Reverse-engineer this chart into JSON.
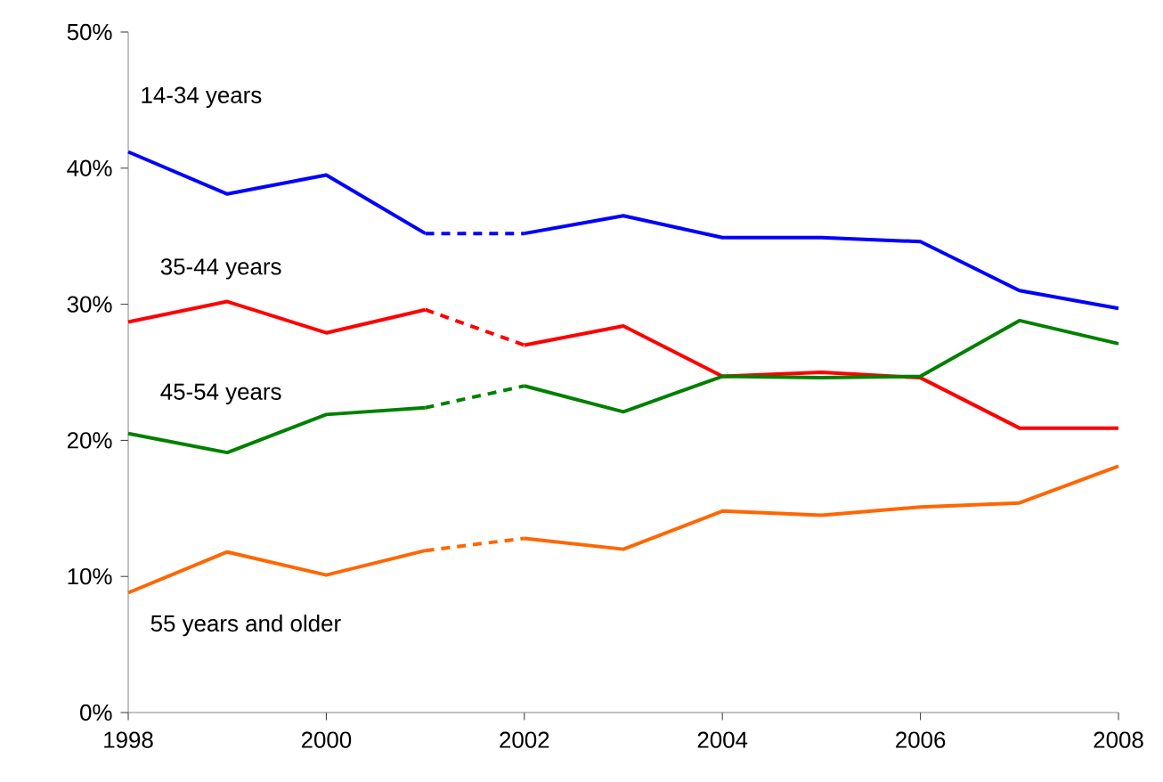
{
  "chart_data": {
    "type": "line",
    "xlim": [
      1998,
      2008
    ],
    "xticks": [
      1998,
      2000,
      2002,
      2004,
      2006,
      2008
    ],
    "ylim": [
      0,
      50
    ],
    "yticks": [
      {
        "value": 0,
        "label": "0%"
      },
      {
        "value": 10,
        "label": "10%"
      },
      {
        "value": 20,
        "label": "20%"
      },
      {
        "value": 30,
        "label": "30%"
      },
      {
        "value": 40,
        "label": "40%"
      },
      {
        "value": 50,
        "label": "50%"
      }
    ],
    "marker": "none",
    "series": [
      {
        "name": "14-34 years",
        "color": "#0000ff",
        "line_style": "solid",
        "x": [
          1998,
          1999,
          2000,
          2001
        ],
        "values": [
          41.2,
          38.1,
          39.5,
          35.2
        ]
      },
      {
        "color": "#0000ff",
        "line_style": "dashed",
        "x": [
          2001,
          2002
        ],
        "values": [
          35.2,
          35.2
        ]
      },
      {
        "color": "#0000ff",
        "line_style": "solid",
        "x": [
          2002,
          2003,
          2004,
          2005,
          2006,
          2007,
          2008
        ],
        "values": [
          35.2,
          36.5,
          34.9,
          34.9,
          34.6,
          31.0,
          29.7
        ]
      },
      {
        "name": "35-44 years",
        "color": "#ff0000",
        "line_style": "solid",
        "x": [
          1998,
          1999,
          2000,
          2001
        ],
        "values": [
          28.7,
          30.2,
          27.9,
          29.6
        ]
      },
      {
        "color": "#ff0000",
        "line_style": "dashed",
        "x": [
          2001,
          2002
        ],
        "values": [
          29.6,
          27.0
        ]
      },
      {
        "color": "#ff0000",
        "line_style": "solid",
        "x": [
          2002,
          2003,
          2004,
          2005,
          2006,
          2007,
          2008
        ],
        "values": [
          27.0,
          28.4,
          24.7,
          25.0,
          24.6,
          20.9,
          20.9
        ]
      },
      {
        "name": "45-54 years",
        "color": "#008000",
        "line_style": "solid",
        "x": [
          1998,
          1999,
          2000,
          2001
        ],
        "values": [
          20.5,
          19.1,
          21.9,
          22.4
        ]
      },
      {
        "color": "#008000",
        "line_style": "dashed",
        "x": [
          2001,
          2002
        ],
        "values": [
          22.4,
          24.0
        ]
      },
      {
        "color": "#008000",
        "line_style": "solid",
        "x": [
          2002,
          2003,
          2004,
          2005,
          2006,
          2007,
          2008
        ],
        "values": [
          24.0,
          22.1,
          24.7,
          24.6,
          24.7,
          28.8,
          27.1
        ]
      },
      {
        "name": "55 years and older",
        "color": "#ff6600",
        "line_style": "solid",
        "x": [
          1998,
          1999,
          2000,
          2001
        ],
        "values": [
          8.8,
          11.8,
          10.1,
          11.9
        ]
      },
      {
        "color": "#ff6600",
        "line_style": "dashed",
        "x": [
          2001,
          2002
        ],
        "values": [
          11.9,
          12.8
        ]
      },
      {
        "color": "#ff6600",
        "line_style": "solid",
        "x": [
          2002,
          2003,
          2004,
          2005,
          2006,
          2007,
          2008
        ],
        "values": [
          12.8,
          12.0,
          14.8,
          14.5,
          15.1,
          15.4,
          18.1
        ]
      }
    ]
  }
}
